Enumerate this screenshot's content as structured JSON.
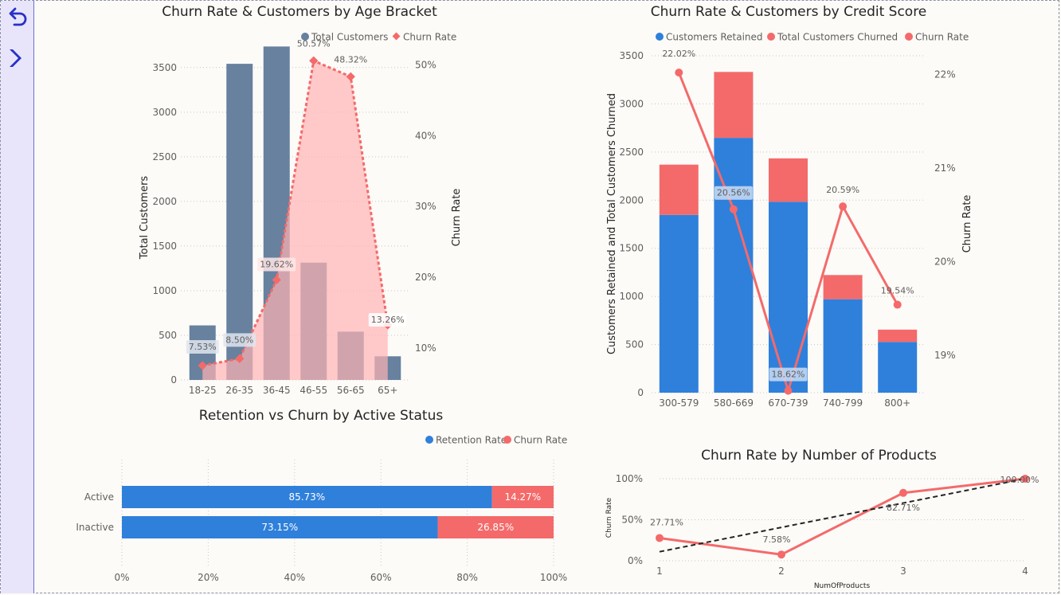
{
  "sidebar": {
    "back_icon": "undo-arrow-icon",
    "next_icon": "chevron-right-icon"
  },
  "colors": {
    "slate": "#67819f",
    "blue": "#2f80db",
    "red": "#f46a6a",
    "area": "#ffb3b3"
  },
  "chart_data": [
    {
      "type": "bar",
      "title": "Churn Rate & Customers by Age Bracket",
      "legend": [
        "Total Customers",
        "Churn Rate"
      ],
      "categories": [
        "18-25",
        "26-35",
        "36-45",
        "46-55",
        "56-65",
        "65+"
      ],
      "ylabel": "Total Customers",
      "y2label": "Churn Rate",
      "series": [
        {
          "name": "Total Customers",
          "type": "bar",
          "values": [
            611,
            3542,
            3736,
            1314,
            541,
            265
          ]
        },
        {
          "name": "Churn Rate",
          "type": "line",
          "values": [
            7.53,
            8.5,
            19.62,
            50.57,
            48.32,
            13.26
          ]
        }
      ],
      "point_labels": [
        "7.53%",
        "8.50%",
        "19.62%",
        "50.57%",
        "48.32%",
        "13.26%"
      ],
      "y_ticks": [
        "0",
        "500",
        "1000",
        "1500",
        "2000",
        "2500",
        "3000",
        "3500"
      ],
      "y2_ticks": [
        "10%",
        "20%",
        "30%",
        "40%",
        "50%"
      ],
      "ylim": [
        0,
        3650
      ],
      "y2lim": [
        5.5,
        51.5
      ],
      "legend_position": "top-right"
    },
    {
      "type": "bar",
      "title": "Churn Rate & Customers by Credit Score",
      "legend": [
        "Customers Retained",
        "Total Customers Churned",
        "Churn Rate"
      ],
      "categories": [
        "300-579",
        "580-669",
        "670-739",
        "740-799",
        "800+"
      ],
      "ylabel": "Customers Retained and Total Customers Churned",
      "y2label": "Churn Rate",
      "series": [
        {
          "name": "Customers Retained",
          "type": "bar",
          "values": [
            1847,
            2647,
            1983,
            971,
            527
          ]
        },
        {
          "name": "Total Customers Churned",
          "type": "bar",
          "values": [
            522,
            685,
            451,
            251,
            128
          ]
        },
        {
          "name": "Churn Rate",
          "type": "line",
          "values": [
            22.02,
            20.56,
            18.62,
            20.59,
            19.54
          ]
        }
      ],
      "point_labels": [
        "22.02%",
        "20.56%",
        "18.62%",
        "20.59%",
        "19.54%"
      ],
      "y_ticks": [
        "0",
        "500",
        "1000",
        "1500",
        "2000",
        "2500",
        "3000",
        "3500"
      ],
      "y2_ticks": [
        "19%",
        "20%",
        "21%",
        "22%"
      ],
      "ylim": [
        0,
        3500
      ],
      "y2lim": [
        18.6,
        22.2
      ],
      "legend_position": "top-left"
    },
    {
      "type": "bar",
      "orientation": "horizontal",
      "stacked": "100%",
      "title": "Retention vs Churn by Active Status",
      "legend": [
        "Retention Rate",
        "Churn Rate"
      ],
      "categories": [
        "Active",
        "Inactive"
      ],
      "series": [
        {
          "name": "Retention Rate",
          "values": [
            85.73,
            73.15
          ]
        },
        {
          "name": "Churn Rate",
          "values": [
            14.27,
            26.85
          ]
        }
      ],
      "segment_labels": [
        [
          "85.73%",
          "14.27%"
        ],
        [
          "73.15%",
          "26.85%"
        ]
      ],
      "x_ticks": [
        "0%",
        "20%",
        "40%",
        "60%",
        "80%",
        "100%"
      ],
      "xlim": [
        0,
        100
      ],
      "legend_position": "top-right"
    },
    {
      "type": "line",
      "title": "Churn Rate by Number of Products",
      "xlabel": "NumOfProducts",
      "ylabel": "Churn Rate",
      "x": [
        1,
        2,
        3,
        4
      ],
      "x_ticks": [
        "1",
        "2",
        "3",
        "4"
      ],
      "series": [
        {
          "name": "Churn Rate",
          "values": [
            27.71,
            7.58,
            82.71,
            100.0
          ]
        }
      ],
      "point_labels": [
        "27.71%",
        "7.58%",
        "82.71%",
        "100.00%"
      ],
      "trend_line": [
        11,
        100
      ],
      "y_ticks": [
        "0%",
        "50%",
        "100%"
      ],
      "ylim": [
        0,
        100
      ]
    }
  ]
}
